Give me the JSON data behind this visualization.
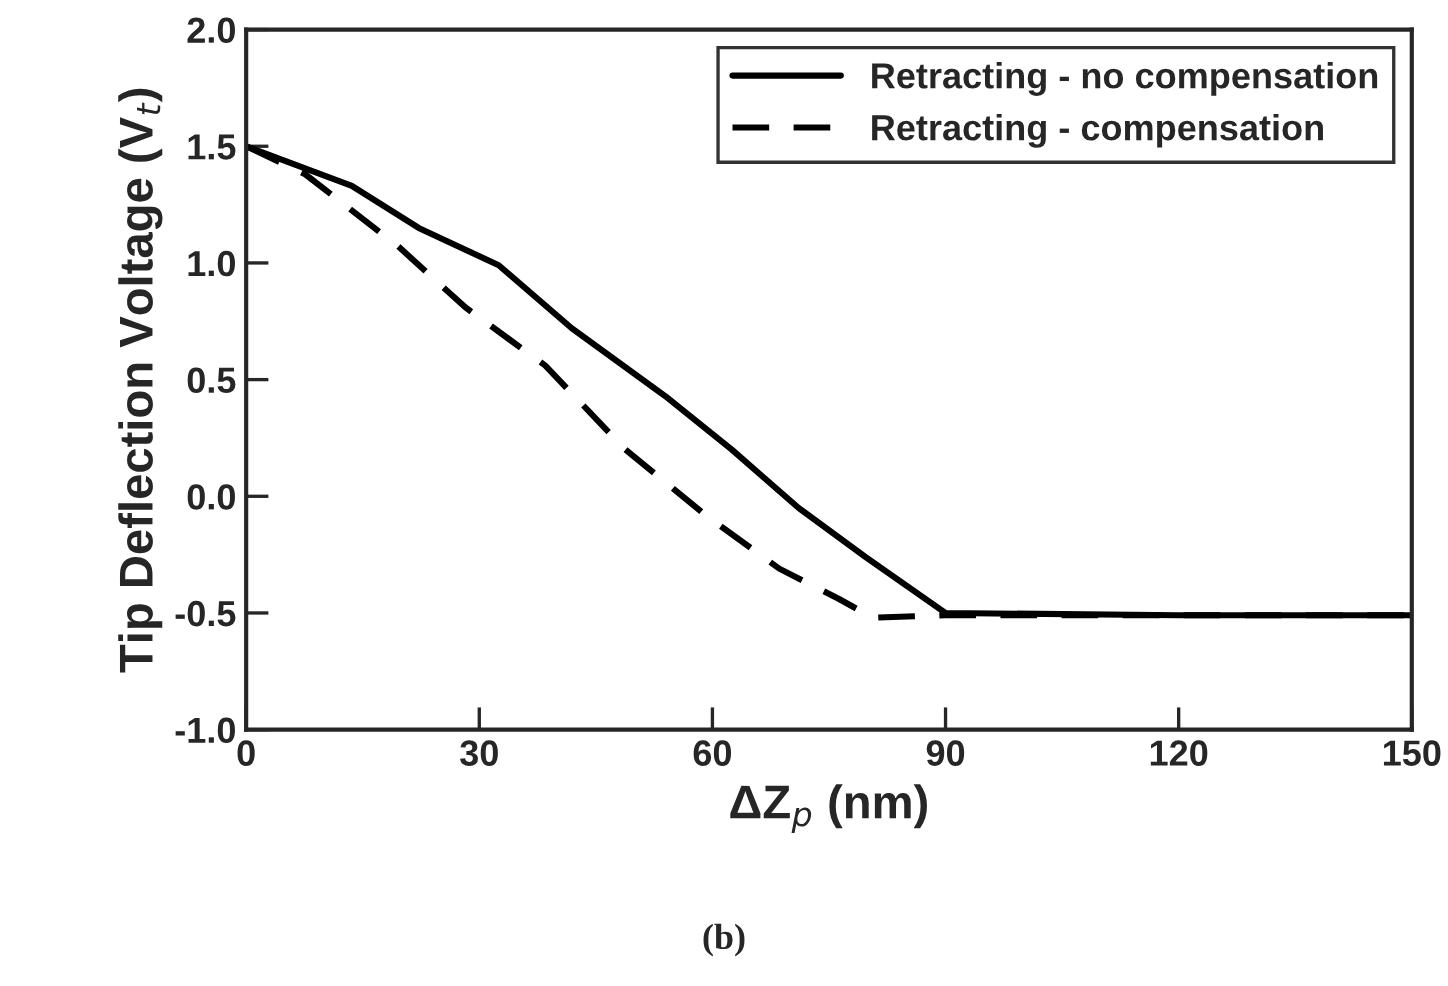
{
  "chart_data": {
    "type": "line",
    "xlabel": "ΔZ$_{p}$ (nm)",
    "ylabel": "Tip Deflection Voltage (V$_{t}$)",
    "series": [
      {
        "name": "Retracting - no compensation",
        "color": "#000000",
        "line_style": "solid",
        "x": [
          0,
          13.6,
          22.2,
          32.5,
          41.9,
          53.9,
          62.5,
          71.1,
          79.7,
          90,
          120,
          150
        ],
        "values": [
          1.5,
          1.33,
          1.15,
          0.99,
          0.72,
          0.43,
          0.2,
          -0.05,
          -0.26,
          -0.5,
          -0.51,
          -0.51
        ]
      },
      {
        "name": "Retracting - compensation",
        "color": "#000000",
        "line_style": "dashed",
        "x": [
          0,
          7.6,
          19.6,
          28.2,
          38.5,
          48.8,
          59.1,
          68.6,
          76.3,
          80.6,
          90,
          120,
          150
        ],
        "values": [
          1.5,
          1.38,
          1.07,
          0.81,
          0.56,
          0.2,
          -0.08,
          -0.31,
          -0.44,
          -0.52,
          -0.51,
          -0.51,
          -0.51
        ]
      }
    ],
    "xlim": [
      0,
      150
    ],
    "xticks": [
      0,
      30,
      60,
      90,
      120,
      150
    ],
    "ylim": [
      -1.0,
      2.0
    ],
    "yticks": [
      {
        "value": -1.0,
        "label": "-1.0"
      },
      {
        "value": -0.5,
        "label": "-0.5"
      },
      {
        "value": 0.0,
        "label": "0.0"
      },
      {
        "value": 0.5,
        "label": "0.5"
      },
      {
        "value": 1.0,
        "label": "1.0"
      },
      {
        "value": 1.5,
        "label": "1.5"
      },
      {
        "value": 2.0,
        "label": "2.0"
      }
    ],
    "legend": "top right",
    "grid": false,
    "annotations": [
      "(b)"
    ]
  }
}
